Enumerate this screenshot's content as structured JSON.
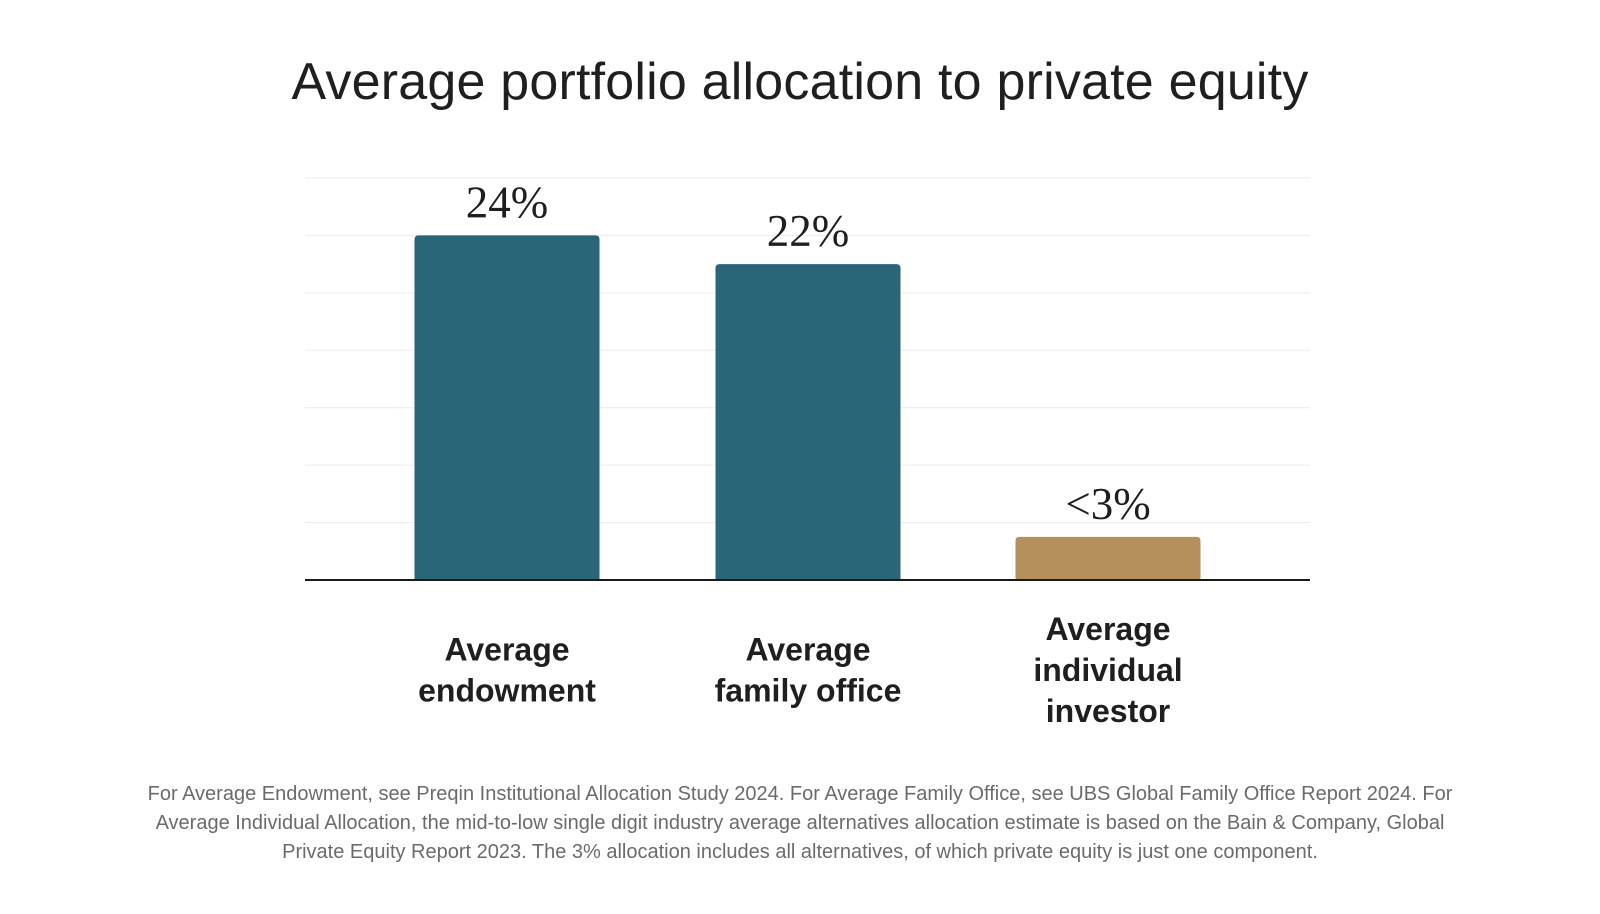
{
  "chart_data": {
    "type": "bar",
    "title": "Average portfolio allocation to private equity",
    "categories": [
      [
        "Average",
        "endowment"
      ],
      [
        "Average",
        "family office"
      ],
      [
        "Average",
        "individual",
        "investor"
      ]
    ],
    "values": [
      24,
      22,
      3
    ],
    "value_labels": [
      "24%",
      "22%",
      "<3%"
    ],
    "ylim": [
      0,
      28
    ],
    "grid_step": 4,
    "grid": true,
    "xlabel": "",
    "ylabel": "",
    "colors": [
      "#2a6578",
      "#2a6578",
      "#b58f5c"
    ]
  },
  "footnote": "For Average Endowment, see Preqin Institutional Allocation Study 2024. For Average Family Office, see UBS Global Family Office Report 2024. For Average Individual Allocation, the mid-to-low single digit industry average alternatives allocation estimate is based on the Bain & Company, Global Private Equity Report 2023. The 3% allocation includes all alternatives, of which private equity is just one component."
}
